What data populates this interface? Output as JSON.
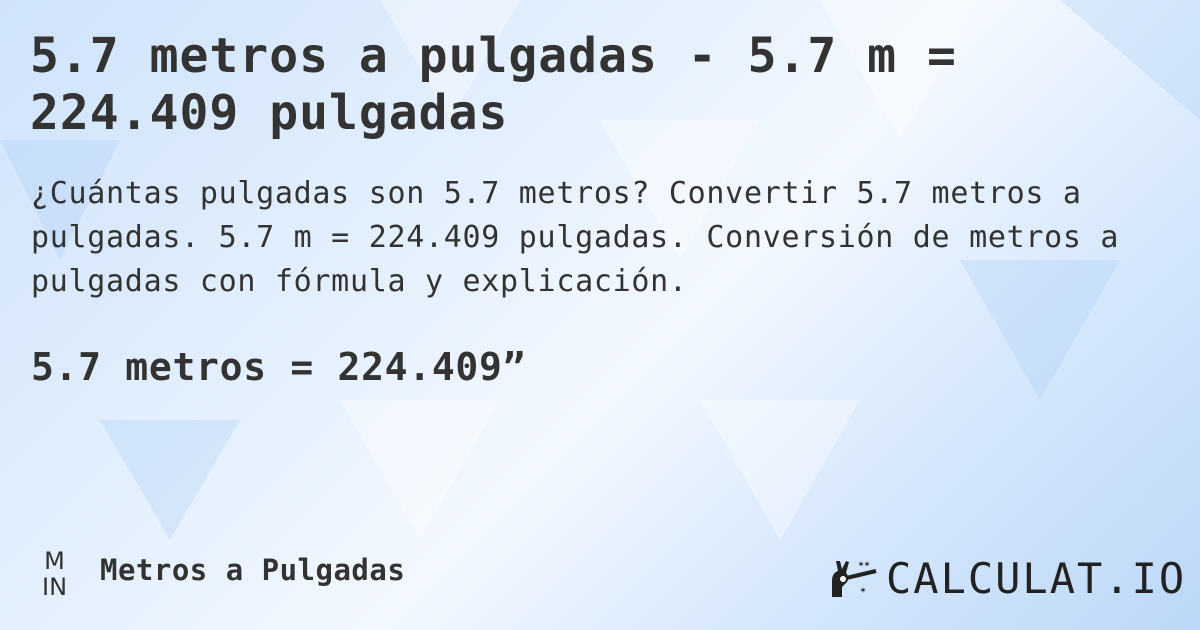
{
  "title": "5.7 metros a pulgadas - 5.7 m = 224.409 pulgadas",
  "description": "¿Cuántas pulgadas son 5.7 metros? Convertir 5.7 metros a pulgadas. 5.7 m = 224.409 pulgadas. Conversión de metros a pulgadas con fórmula y explicación.",
  "result": "5.7 metros = 224.409”",
  "footer": {
    "unit_icon_top": "M",
    "unit_icon_bottom": "IN",
    "label": "Metros a Pulgadas",
    "logo_text": "CALCULAT.IO"
  }
}
